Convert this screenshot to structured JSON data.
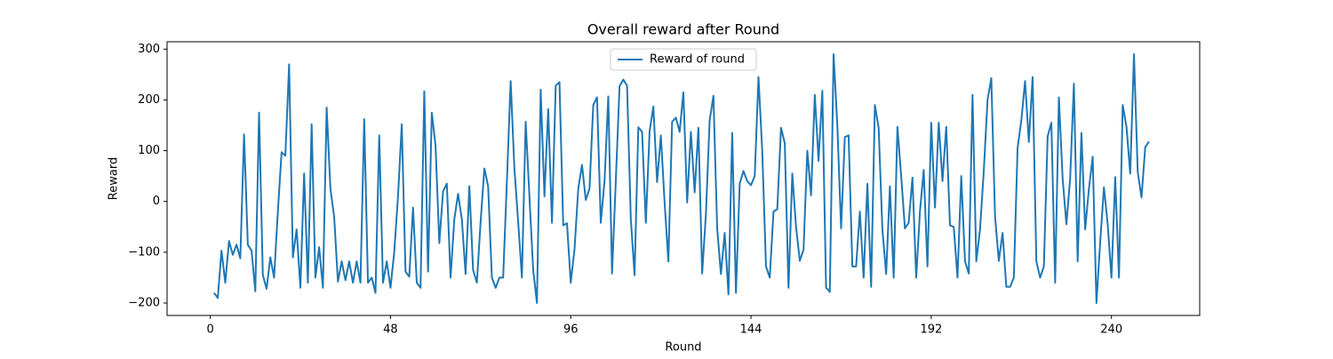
{
  "chart_data": {
    "type": "line",
    "title": "Overall reward after Round",
    "x_label": "Round",
    "y_label": "Reward",
    "legend": "upper center",
    "xlim": [
      -11.5,
      263.5
    ],
    "ylim": [
      -224.5,
      314.5
    ],
    "xticks": [
      0,
      48,
      96,
      144,
      192,
      240
    ],
    "yticks": [
      {
        "value": -200,
        "label": "−200"
      },
      {
        "value": -100,
        "label": "−100"
      },
      0,
      100,
      200,
      300
    ],
    "x": [
      1,
      2,
      3,
      4,
      5,
      6,
      7,
      8,
      9,
      10,
      11,
      12,
      13,
      14,
      15,
      16,
      17,
      18,
      19,
      20,
      21,
      22,
      23,
      24,
      25,
      26,
      27,
      28,
      29,
      30,
      31,
      32,
      33,
      34,
      35,
      36,
      37,
      38,
      39,
      40,
      41,
      42,
      43,
      44,
      45,
      46,
      47,
      48,
      49,
      50,
      51,
      52,
      53,
      54,
      55,
      56,
      57,
      58,
      59,
      60,
      61,
      62,
      63,
      64,
      65,
      66,
      67,
      68,
      69,
      70,
      71,
      72,
      73,
      74,
      75,
      76,
      77,
      78,
      79,
      80,
      81,
      82,
      83,
      84,
      85,
      86,
      87,
      88,
      89,
      90,
      91,
      92,
      93,
      94,
      95,
      96,
      97,
      98,
      99,
      100,
      101,
      102,
      103,
      104,
      105,
      106,
      107,
      108,
      109,
      110,
      111,
      112,
      113,
      114,
      115,
      116,
      117,
      118,
      119,
      120,
      121,
      122,
      123,
      124,
      125,
      126,
      127,
      128,
      129,
      130,
      131,
      132,
      133,
      134,
      135,
      136,
      137,
      138,
      139,
      140,
      141,
      142,
      143,
      144,
      145,
      146,
      147,
      148,
      149,
      150,
      151,
      152,
      153,
      154,
      155,
      156,
      157,
      158,
      159,
      160,
      161,
      162,
      163,
      164,
      165,
      166,
      167,
      168,
      169,
      170,
      171,
      172,
      173,
      174,
      175,
      176,
      177,
      178,
      179,
      180,
      181,
      182,
      183,
      184,
      185,
      186,
      187,
      188,
      189,
      190,
      191,
      192,
      193,
      194,
      195,
      196,
      197,
      198,
      199,
      200,
      201,
      202,
      203,
      204,
      205,
      206,
      207,
      208,
      209,
      210,
      211,
      212,
      213,
      214,
      215,
      216,
      217,
      218,
      219,
      220,
      221,
      222,
      223,
      224,
      225,
      226,
      227,
      228,
      229,
      230,
      231,
      232,
      233,
      234,
      235,
      236,
      237,
      238,
      239,
      240,
      241,
      242,
      243,
      244,
      245,
      246,
      247,
      248,
      249,
      250
    ],
    "series": [
      {
        "name": "Reward of round",
        "color": "#1f77b4",
        "values": [
          -180,
          -190,
          -97,
          -160,
          -78,
          -105,
          -85,
          -112,
          132,
          -85,
          -97,
          -177,
          175,
          -145,
          -172,
          -110,
          -150,
          -20,
          97,
          90,
          270,
          -110,
          -55,
          -170,
          55,
          -160,
          152,
          -150,
          -90,
          -170,
          185,
          25,
          -30,
          -158,
          -118,
          -155,
          -118,
          -160,
          -118,
          -160,
          162,
          -160,
          -150,
          -180,
          130,
          -160,
          -118,
          -170,
          -100,
          10,
          152,
          -138,
          -148,
          -12,
          -160,
          -170,
          217,
          -138,
          175,
          110,
          -82,
          20,
          35,
          -150,
          -35,
          15,
          -35,
          -143,
          30,
          -135,
          -160,
          -40,
          65,
          30,
          -150,
          -170,
          -150,
          -150,
          40,
          237,
          65,
          -40,
          -150,
          157,
          10,
          -135,
          -200,
          220,
          10,
          182,
          -42,
          228,
          235,
          -47,
          -43,
          -160,
          -95,
          25,
          72,
          3,
          25,
          190,
          205,
          -42,
          40,
          207,
          -142,
          40,
          227,
          240,
          228,
          -35,
          -145,
          146,
          137,
          -42,
          138,
          187,
          38,
          130,
          -2,
          -118,
          157,
          165,
          137,
          215,
          -2,
          137,
          18,
          145,
          -142,
          -25,
          160,
          208,
          -53,
          -143,
          -62,
          -183,
          135,
          -180,
          35,
          60,
          40,
          32,
          50,
          245,
          100,
          -128,
          -150,
          -20,
          -15,
          145,
          115,
          -170,
          55,
          -50,
          -117,
          -95,
          100,
          12,
          210,
          80,
          218,
          -170,
          -178,
          290,
          150,
          -53,
          127,
          130,
          -128,
          -128,
          -20,
          -150,
          35,
          -168,
          190,
          145,
          -55,
          -143,
          30,
          -150,
          147,
          50,
          -53,
          -42,
          47,
          -150,
          -20,
          62,
          -128,
          155,
          -12,
          155,
          40,
          147,
          -47,
          -50,
          -150,
          50,
          -118,
          -142,
          210,
          -118,
          -55,
          60,
          200,
          243,
          -30,
          -117,
          -62,
          -168,
          -168,
          -150,
          105,
          160,
          237,
          117,
          245,
          -118,
          -150,
          -128,
          128,
          155,
          -160,
          205,
          45,
          -45,
          45,
          232,
          -118,
          135,
          -55,
          25,
          88,
          -200,
          -80,
          28,
          -45,
          -150,
          48,
          -150,
          190,
          147,
          55,
          290,
          58,
          8,
          107,
          118
        ]
      }
    ]
  }
}
